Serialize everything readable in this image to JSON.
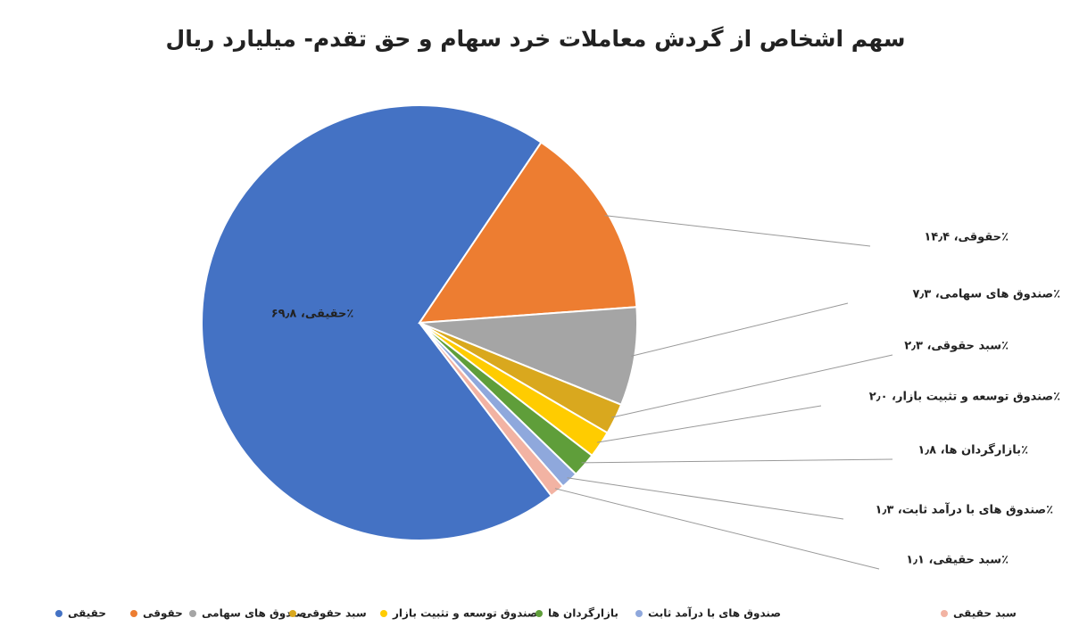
{
  "chart_data": {
    "type": "pie",
    "title": "سهم اشخاص از گردش معاملات خرد سهام و حق تقدم- میلیارد ریال",
    "categories": [
      "حقیقی",
      "حقوقی",
      "صندوق های سهامی",
      "سبد حقوقی",
      "صندوق توسعه و تثبیت بازار",
      "بازارگردان ها",
      "صندوق های با درآمد ثابت",
      "سبد حقیقی"
    ],
    "values": [
      69.8,
      14.4,
      7.3,
      2.3,
      2.0,
      1.8,
      1.3,
      1.1
    ],
    "value_labels": [
      "حقیقی، ۶۹٫۸٪",
      "حقوقی، ۱۴٫۴٪",
      "صندوق های سهامی، ۷٫۳٪",
      "سبد حقوقی، ۲٫۳٪",
      "صندوق توسعه و تثبیت بازار، ۲٫۰٪",
      "بازارگردان ها، ۱٫۸٪",
      "صندوق های با درآمد ثابت، ۱٫۳٪",
      "سبد حقیقی، ۱٫۱٪"
    ],
    "colors": [
      "#4472c4",
      "#ed7d31",
      "#a5a5a5",
      "#d9a81e",
      "#ffcc00",
      "#5f9e3a",
      "#8fa8dc",
      "#f2b3a3"
    ],
    "legend": "bottom"
  }
}
